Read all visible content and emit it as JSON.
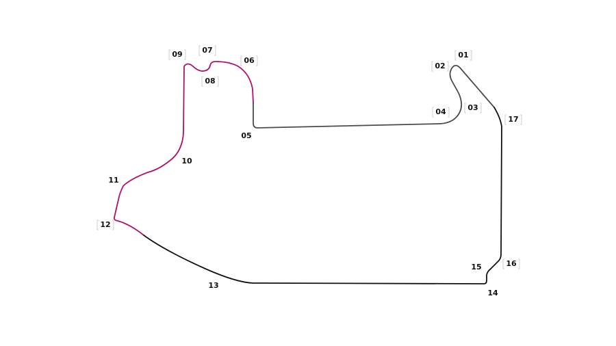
{
  "sectors": [
    {
      "id": "sector-a",
      "color": "#4a4a4a"
    },
    {
      "id": "sector-b",
      "color": "#b0106a"
    },
    {
      "id": "sector-c",
      "color": "#111111"
    }
  ],
  "corners": [
    {
      "label": "01",
      "bracketed": true
    },
    {
      "label": "02",
      "bracketed": true
    },
    {
      "label": "03",
      "bracketed": true
    },
    {
      "label": "04",
      "bracketed": true
    },
    {
      "label": "05",
      "bracketed": false
    },
    {
      "label": "06",
      "bracketed": true
    },
    {
      "label": "07",
      "bracketed": true
    },
    {
      "label": "08",
      "bracketed": true
    },
    {
      "label": "09",
      "bracketed": true
    },
    {
      "label": "10",
      "bracketed": false
    },
    {
      "label": "11",
      "bracketed": false
    },
    {
      "label": "12",
      "bracketed": true
    },
    {
      "label": "13",
      "bracketed": false
    },
    {
      "label": "14",
      "bracketed": false
    },
    {
      "label": "15",
      "bracketed": false
    },
    {
      "label": "16",
      "bracketed": true
    },
    {
      "label": "17",
      "bracketed": true
    }
  ]
}
